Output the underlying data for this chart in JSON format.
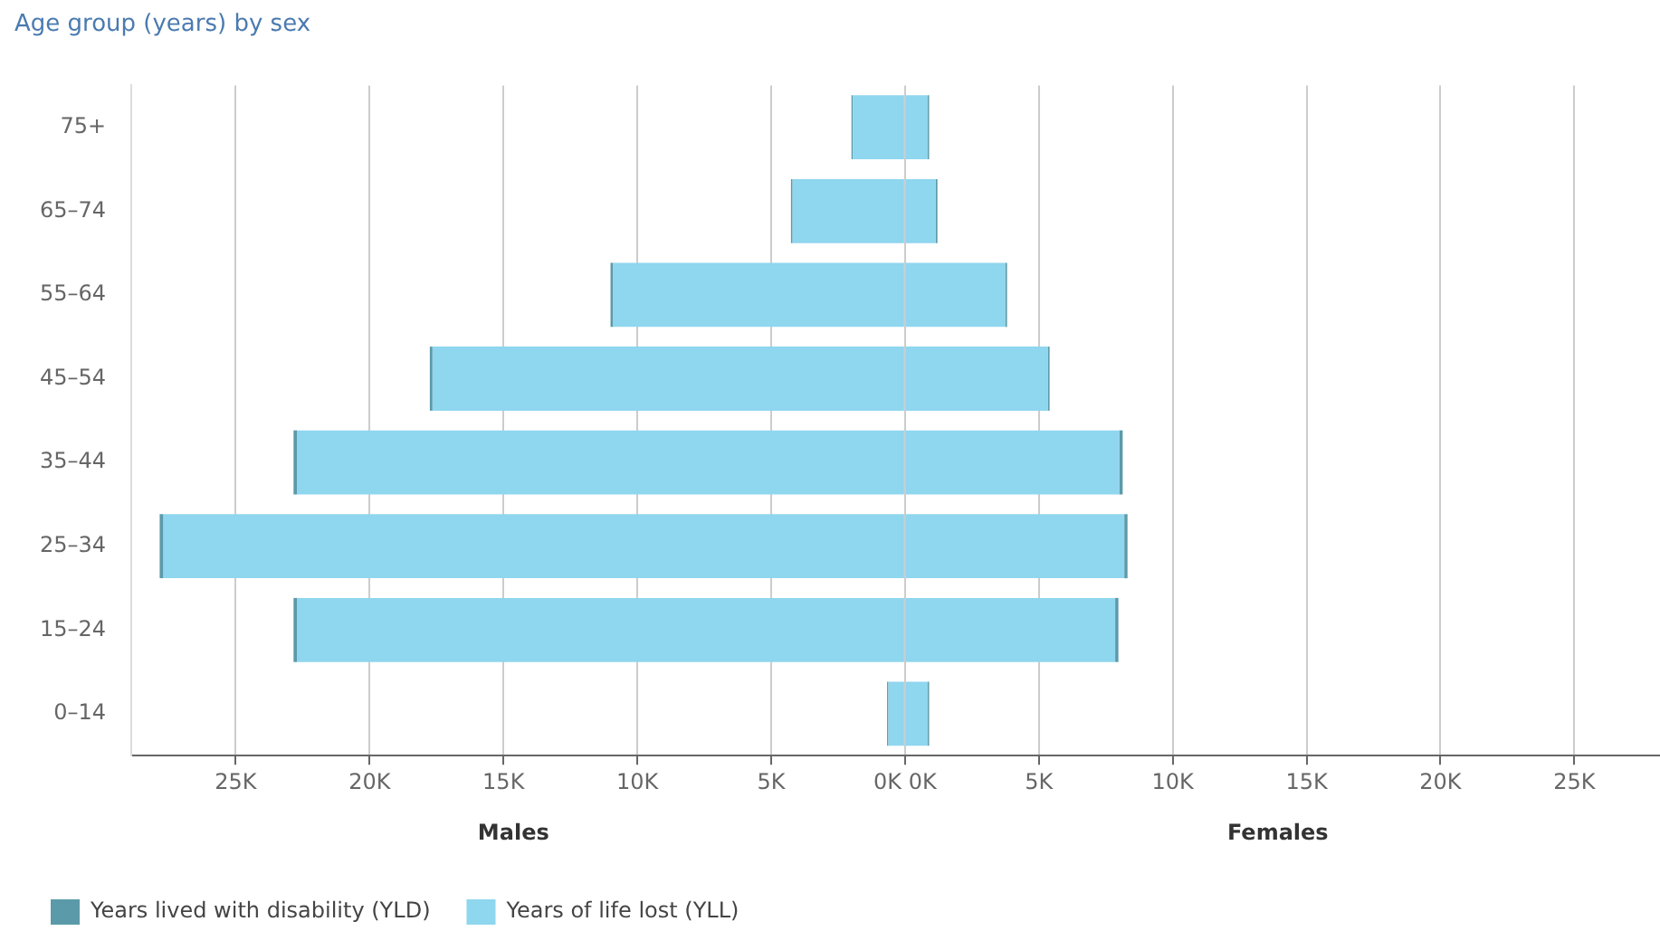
{
  "chart_data": {
    "type": "bar",
    "orientation": "horizontal",
    "stacked": true,
    "title": "Age group (years) by sex",
    "categories": [
      "75+",
      "65–74",
      "55–64",
      "45–54",
      "35–44",
      "25–34",
      "15–24",
      "0–14"
    ],
    "series": [
      {
        "color": "#8fd6ef",
        "values": [
          -1950,
          -4200,
          -10900,
          -17650,
          -22700,
          -27700,
          -22700,
          -620
        ]
      },
      {
        "color": "#5b9aa9",
        "values": [
          -50,
          -60,
          -100,
          -100,
          -140,
          -140,
          -140,
          -50
        ]
      },
      {
        "name": "Years of life lost (YLL)",
        "color": "#8fd6ef",
        "values": [
          850,
          1150,
          3740,
          5330,
          8000,
          8190,
          7850,
          850
        ]
      },
      {
        "name": "Years lived with disability (YLD)",
        "color": "#5b9aa9",
        "values": [
          50,
          60,
          70,
          70,
          130,
          120,
          120,
          50
        ]
      }
    ],
    "xlim": [
      -28900,
      28200
    ],
    "xticks": [
      {
        "value": -25000,
        "label": "25K"
      },
      {
        "value": -20000,
        "label": "20K"
      },
      {
        "value": -15000,
        "label": "15K"
      },
      {
        "value": -10000,
        "label": "10K"
      },
      {
        "value": -5000,
        "label": "5K"
      },
      {
        "value": 0,
        "label": "0K 0K"
      },
      {
        "value": 5000,
        "label": "5K"
      },
      {
        "value": 10000,
        "label": "10K"
      },
      {
        "value": 15000,
        "label": "15K"
      },
      {
        "value": 20000,
        "label": "20K"
      },
      {
        "value": 25000,
        "label": "25K"
      }
    ],
    "annotations": [
      "Males",
      "Females"
    ],
    "grid": "x",
    "legend": "bottom left"
  }
}
